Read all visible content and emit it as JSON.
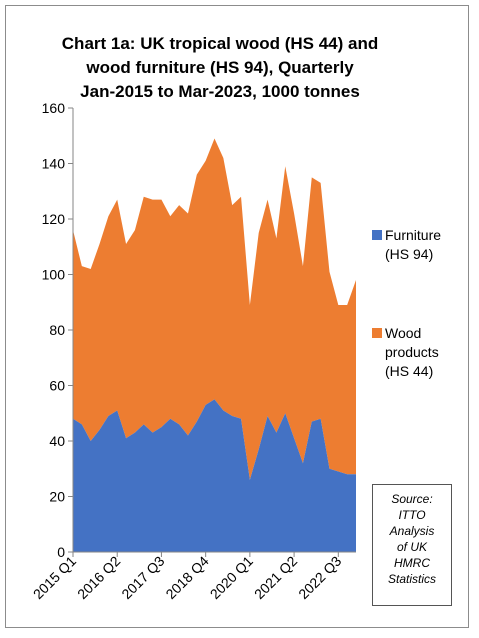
{
  "title": {
    "line1": "Chart 1a: UK tropical wood (HS 44) and",
    "line2": "wood furniture (HS 94), Quarterly",
    "line3": "Jan-2015 to Mar-2023, 1000 tonnes"
  },
  "legend": {
    "furniture": {
      "line1": "Furniture",
      "line2": "(HS 94)"
    },
    "wood": {
      "line1": "Wood",
      "line2": "products",
      "line3": "(HS 44)"
    }
  },
  "source_box": {
    "line1": "Source:",
    "line2": "ITTO",
    "line3": "Analysis",
    "line4": "of UK",
    "line5": "HMRC",
    "line6": "Statistics"
  },
  "colors": {
    "furniture": "#4472C4",
    "wood": "#ED7D31"
  },
  "chart_data": {
    "type": "area",
    "stacked": true,
    "title": "Chart 1a: UK tropical wood (HS 44) and wood furniture (HS 94), Quarterly Jan-2015 to Mar-2023, 1000 tonnes",
    "x": [
      "2015 Q1",
      "2015 Q2",
      "2015 Q3",
      "2015 Q4",
      "2016 Q1",
      "2016 Q2",
      "2016 Q3",
      "2016 Q4",
      "2017 Q1",
      "2017 Q2",
      "2017 Q3",
      "2017 Q4",
      "2018 Q1",
      "2018 Q2",
      "2018 Q3",
      "2018 Q4",
      "2019 Q1",
      "2019 Q2",
      "2019 Q3",
      "2019 Q4",
      "2020 Q1",
      "2020 Q2",
      "2020 Q3",
      "2020 Q4",
      "2021 Q1",
      "2021 Q2",
      "2021 Q3",
      "2021 Q4",
      "2022 Q1",
      "2022 Q2",
      "2022 Q3",
      "2022 Q4",
      "2023 Q1"
    ],
    "x_tick_labels": [
      "2015 Q1",
      "2016 Q2",
      "2017 Q3",
      "2018 Q4",
      "2020 Q1",
      "2021 Q2",
      "2022 Q3"
    ],
    "x_tick_every": 5,
    "series": [
      {
        "name": "Furniture (HS 94)",
        "values": [
          48,
          46,
          40,
          44,
          49,
          51,
          41,
          43,
          46,
          43,
          45,
          48,
          46,
          42,
          47,
          53,
          55,
          51,
          49,
          48,
          26,
          37,
          49,
          43,
          50,
          41,
          32,
          47,
          48,
          30,
          29,
          28,
          28
        ]
      },
      {
        "name": "Wood products (HS 44)",
        "values": [
          68,
          57,
          62,
          67,
          72,
          76,
          70,
          73,
          82,
          84,
          82,
          73,
          79,
          80,
          89,
          88,
          94,
          91,
          76,
          80,
          63,
          78,
          78,
          70,
          89,
          81,
          71,
          88,
          85,
          71,
          60,
          61,
          70
        ]
      }
    ],
    "totals": [
      116,
      103,
      102,
      111,
      121,
      127,
      111,
      116,
      128,
      127,
      127,
      121,
      125,
      122,
      136,
      141,
      149,
      142,
      125,
      128,
      89,
      115,
      127,
      113,
      139,
      122,
      103,
      135,
      133,
      101,
      89,
      89,
      98
    ],
    "ylim": [
      0,
      160
    ],
    "y_ticks": [
      0,
      20,
      40,
      60,
      80,
      100,
      120,
      140,
      160
    ],
    "grid": false,
    "legend_position": "right"
  }
}
